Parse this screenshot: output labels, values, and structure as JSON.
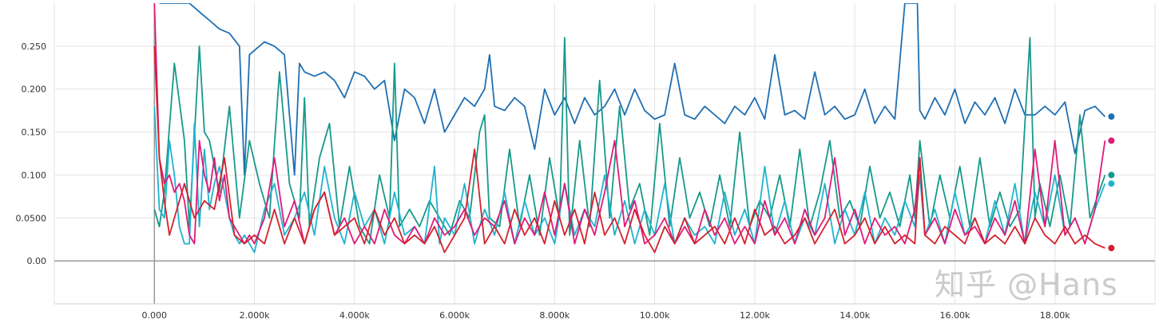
{
  "watermark": "知乎 @Hans",
  "chart_data": {
    "type": "line",
    "title": "",
    "xlabel": "",
    "ylabel": "",
    "xlim": [
      -2000,
      20000
    ],
    "ylim": [
      -0.05,
      0.3
    ],
    "grid": true,
    "x_ticks": [
      0,
      2000,
      4000,
      6000,
      8000,
      10000,
      12000,
      14000,
      16000,
      18000
    ],
    "x_tick_labels": [
      "0.000",
      "2.000k",
      "4.000k",
      "6.000k",
      "8.000k",
      "10.00k",
      "12.00k",
      "14.00k",
      "16.00k",
      "18.00k"
    ],
    "y_ticks": [
      0,
      0.05,
      0.1,
      0.15,
      0.2,
      0.25
    ],
    "y_tick_labels": [
      "0.00",
      "0.0500",
      "0.100",
      "0.150",
      "0.200",
      "0.250"
    ],
    "series": [
      {
        "color": "#1f6fb2",
        "x": [
          100,
          300,
          500,
          700,
          900,
          1100,
          1300,
          1500,
          1700,
          1800,
          1900,
          2000,
          2200,
          2400,
          2600,
          2800,
          2900,
          3000,
          3200,
          3400,
          3600,
          3800,
          4000,
          4200,
          4400,
          4600,
          4800,
          5000,
          5200,
          5400,
          5600,
          5800,
          6000,
          6200,
          6400,
          6600,
          6700,
          6800,
          7000,
          7200,
          7400,
          7600,
          7800,
          8000,
          8200,
          8400,
          8600,
          8800,
          9000,
          9200,
          9400,
          9600,
          9800,
          10000,
          10200,
          10400,
          10600,
          10800,
          11000,
          11200,
          11400,
          11600,
          11800,
          12000,
          12200,
          12400,
          12600,
          12800,
          13000,
          13200,
          13400,
          13600,
          13800,
          14000,
          14200,
          14400,
          14600,
          14800,
          15000,
          15200,
          15250,
          15300,
          15400,
          15600,
          15800,
          16000,
          16200,
          16400,
          16600,
          16800,
          17000,
          17200,
          17400,
          17600,
          17800,
          18000,
          18200,
          18400,
          18600,
          18800,
          19000
        ],
        "y": [
          0.3,
          0.3,
          0.3,
          0.3,
          0.29,
          0.28,
          0.27,
          0.265,
          0.25,
          0.1,
          0.24,
          0.245,
          0.255,
          0.25,
          0.24,
          0.1,
          0.23,
          0.22,
          0.215,
          0.22,
          0.21,
          0.19,
          0.22,
          0.215,
          0.2,
          0.21,
          0.14,
          0.2,
          0.19,
          0.16,
          0.2,
          0.15,
          0.17,
          0.19,
          0.18,
          0.2,
          0.24,
          0.18,
          0.175,
          0.19,
          0.18,
          0.13,
          0.2,
          0.17,
          0.19,
          0.16,
          0.19,
          0.17,
          0.18,
          0.2,
          0.17,
          0.2,
          0.175,
          0.165,
          0.17,
          0.23,
          0.17,
          0.165,
          0.18,
          0.17,
          0.16,
          0.18,
          0.17,
          0.19,
          0.165,
          0.24,
          0.17,
          0.175,
          0.165,
          0.22,
          0.17,
          0.18,
          0.165,
          0.17,
          0.2,
          0.16,
          0.18,
          0.165,
          0.3,
          0.3,
          0.3,
          0.175,
          0.165,
          0.19,
          0.17,
          0.2,
          0.16,
          0.185,
          0.17,
          0.19,
          0.16,
          0.2,
          0.17,
          0.17,
          0.18,
          0.17,
          0.185,
          0.125,
          0.175,
          0.18,
          0.168
        ]
      },
      {
        "color": "#16998a",
        "x": [
          0,
          100,
          200,
          400,
          600,
          700,
          900,
          1000,
          1100,
          1300,
          1500,
          1700,
          1900,
          2100,
          2300,
          2500,
          2700,
          2900,
          3000,
          3100,
          3300,
          3500,
          3700,
          3900,
          4100,
          4300,
          4500,
          4700,
          4800,
          4900,
          5100,
          5300,
          5500,
          5700,
          5900,
          6100,
          6300,
          6500,
          6600,
          6700,
          6900,
          7100,
          7300,
          7500,
          7700,
          7900,
          8100,
          8200,
          8300,
          8500,
          8700,
          8900,
          9100,
          9300,
          9500,
          9700,
          9900,
          10100,
          10300,
          10500,
          10700,
          10900,
          11100,
          11300,
          11500,
          11700,
          11900,
          12100,
          12300,
          12500,
          12700,
          12900,
          13100,
          13300,
          13500,
          13700,
          13900,
          14100,
          14300,
          14500,
          14700,
          14900,
          15100,
          15200,
          15300,
          15500,
          15700,
          15900,
          16100,
          16300,
          16500,
          16700,
          16900,
          17100,
          17300,
          17500,
          17600,
          17700,
          17900,
          18100,
          18300,
          18500,
          18700,
          19000
        ],
        "y": [
          0.06,
          0.04,
          0.08,
          0.23,
          0.14,
          0.04,
          0.25,
          0.15,
          0.14,
          0.08,
          0.18,
          0.05,
          0.14,
          0.09,
          0.05,
          0.22,
          0.09,
          0.05,
          0.19,
          0.04,
          0.12,
          0.16,
          0.04,
          0.11,
          0.04,
          0.02,
          0.1,
          0.05,
          0.23,
          0.04,
          0.06,
          0.04,
          0.07,
          0.05,
          0.03,
          0.07,
          0.05,
          0.15,
          0.17,
          0.05,
          0.04,
          0.13,
          0.04,
          0.1,
          0.03,
          0.12,
          0.05,
          0.26,
          0.03,
          0.14,
          0.04,
          0.21,
          0.05,
          0.18,
          0.06,
          0.09,
          0.03,
          0.16,
          0.04,
          0.12,
          0.05,
          0.08,
          0.04,
          0.1,
          0.04,
          0.15,
          0.04,
          0.07,
          0.05,
          0.1,
          0.04,
          0.13,
          0.04,
          0.08,
          0.14,
          0.05,
          0.07,
          0.04,
          0.11,
          0.05,
          0.08,
          0.04,
          0.1,
          0.05,
          0.14,
          0.04,
          0.1,
          0.05,
          0.11,
          0.04,
          0.12,
          0.04,
          0.08,
          0.04,
          0.06,
          0.26,
          0.05,
          0.09,
          0.04,
          0.1,
          0.04,
          0.17,
          0.05,
          0.1
        ]
      },
      {
        "color": "#1fb3d0",
        "x": [
          0,
          100,
          200,
          300,
          400,
          500,
          600,
          700,
          800,
          900,
          1000,
          1100,
          1200,
          1300,
          1400,
          1500,
          1600,
          1700,
          1800,
          1900,
          2000,
          2200,
          2400,
          2600,
          2800,
          3000,
          3200,
          3400,
          3600,
          3800,
          4000,
          4200,
          4400,
          4600,
          4800,
          5000,
          5200,
          5400,
          5600,
          5700,
          5800,
          6000,
          6200,
          6400,
          6600,
          6800,
          7000,
          7200,
          7400,
          7600,
          7800,
          8000,
          8200,
          8400,
          8600,
          8800,
          9000,
          9200,
          9400,
          9600,
          9800,
          10000,
          10200,
          10400,
          10600,
          10800,
          11000,
          11200,
          11400,
          11600,
          11800,
          12000,
          12200,
          12400,
          12600,
          12800,
          13000,
          13200,
          13400,
          13600,
          13800,
          14000,
          14200,
          14400,
          14600,
          14800,
          15000,
          15200,
          15300,
          15400,
          15600,
          15800,
          16000,
          16200,
          16400,
          16600,
          16800,
          17000,
          17200,
          17400,
          17600,
          17800,
          18000,
          18200,
          18400,
          18600,
          18800,
          19000
        ],
        "y": [
          0.18,
          0.06,
          0.05,
          0.14,
          0.1,
          0.04,
          0.02,
          0.02,
          0.16,
          0.04,
          0.13,
          0.06,
          0.09,
          0.11,
          0.08,
          0.05,
          0.03,
          0.02,
          0.03,
          0.02,
          0.01,
          0.06,
          0.09,
          0.03,
          0.05,
          0.08,
          0.03,
          0.11,
          0.05,
          0.02,
          0.08,
          0.04,
          0.06,
          0.02,
          0.08,
          0.03,
          0.04,
          0.02,
          0.11,
          0.02,
          0.05,
          0.03,
          0.09,
          0.02,
          0.06,
          0.03,
          0.08,
          0.02,
          0.07,
          0.03,
          0.05,
          0.02,
          0.09,
          0.03,
          0.06,
          0.04,
          0.1,
          0.03,
          0.07,
          0.02,
          0.06,
          0.03,
          0.09,
          0.02,
          0.05,
          0.03,
          0.04,
          0.02,
          0.08,
          0.03,
          0.06,
          0.02,
          0.11,
          0.03,
          0.07,
          0.02,
          0.05,
          0.03,
          0.09,
          0.02,
          0.06,
          0.03,
          0.08,
          0.02,
          0.05,
          0.03,
          0.07,
          0.04,
          0.1,
          0.03,
          0.06,
          0.02,
          0.08,
          0.03,
          0.05,
          0.02,
          0.07,
          0.03,
          0.09,
          0.02,
          0.08,
          0.04,
          0.1,
          0.03,
          0.05,
          0.02,
          0.06,
          0.09
        ]
      },
      {
        "color": "#e0197a",
        "x": [
          0,
          100,
          200,
          300,
          400,
          500,
          600,
          700,
          800,
          900,
          1000,
          1100,
          1200,
          1300,
          1400,
          1500,
          1600,
          1700,
          1800,
          1900,
          2000,
          2200,
          2400,
          2600,
          2800,
          3000,
          3200,
          3400,
          3600,
          3800,
          4000,
          4200,
          4400,
          4600,
          4800,
          5000,
          5200,
          5400,
          5600,
          5800,
          6000,
          6200,
          6400,
          6600,
          6800,
          7000,
          7200,
          7400,
          7600,
          7800,
          8000,
          8200,
          8400,
          8600,
          8800,
          9000,
          9200,
          9400,
          9600,
          9800,
          10000,
          10200,
          10400,
          10600,
          10800,
          11000,
          11200,
          11400,
          11600,
          11800,
          12000,
          12200,
          12400,
          12600,
          12800,
          13000,
          13200,
          13400,
          13600,
          13800,
          14000,
          14200,
          14400,
          14600,
          14800,
          15000,
          15200,
          15300,
          15400,
          15600,
          15800,
          16000,
          16200,
          16400,
          16600,
          16800,
          17000,
          17200,
          17400,
          17600,
          17800,
          18000,
          18200,
          18400,
          18600,
          18800,
          19000
        ],
        "y": [
          0.3,
          0.12,
          0.09,
          0.1,
          0.08,
          0.09,
          0.07,
          0.03,
          0.02,
          0.14,
          0.1,
          0.08,
          0.12,
          0.07,
          0.1,
          0.05,
          0.04,
          0.03,
          0.02,
          0.03,
          0.02,
          0.05,
          0.12,
          0.04,
          0.07,
          0.02,
          0.06,
          0.08,
          0.03,
          0.05,
          0.02,
          0.04,
          0.02,
          0.06,
          0.03,
          0.02,
          0.04,
          0.02,
          0.05,
          0.03,
          0.04,
          0.06,
          0.03,
          0.05,
          0.04,
          0.07,
          0.02,
          0.05,
          0.03,
          0.08,
          0.03,
          0.09,
          0.02,
          0.06,
          0.03,
          0.08,
          0.14,
          0.04,
          0.07,
          0.02,
          0.03,
          0.05,
          0.02,
          0.04,
          0.02,
          0.06,
          0.03,
          0.05,
          0.02,
          0.04,
          0.02,
          0.07,
          0.03,
          0.05,
          0.02,
          0.06,
          0.03,
          0.05,
          0.12,
          0.03,
          0.06,
          0.02,
          0.05,
          0.03,
          0.04,
          0.02,
          0.06,
          0.12,
          0.03,
          0.05,
          0.02,
          0.06,
          0.03,
          0.04,
          0.02,
          0.05,
          0.03,
          0.07,
          0.02,
          0.13,
          0.04,
          0.14,
          0.03,
          0.05,
          0.02,
          0.06,
          0.14
        ]
      },
      {
        "color": "#d2222d",
        "x": [
          0,
          100,
          200,
          300,
          400,
          600,
          800,
          1000,
          1200,
          1400,
          1600,
          1800,
          2000,
          2200,
          2400,
          2600,
          2800,
          3000,
          3200,
          3400,
          3600,
          3800,
          4000,
          4200,
          4400,
          4600,
          4800,
          5000,
          5200,
          5400,
          5600,
          5800,
          6000,
          6200,
          6400,
          6600,
          6800,
          7000,
          7200,
          7400,
          7600,
          7800,
          8000,
          8200,
          8400,
          8600,
          8800,
          9000,
          9200,
          9400,
          9600,
          9800,
          10000,
          10200,
          10400,
          10600,
          10800,
          11000,
          11200,
          11400,
          11600,
          11800,
          12000,
          12200,
          12400,
          12600,
          12800,
          13000,
          13200,
          13400,
          13600,
          13800,
          14000,
          14200,
          14400,
          14600,
          14800,
          15000,
          15200,
          15300,
          15400,
          15600,
          15800,
          16000,
          16200,
          16400,
          16600,
          16800,
          17000,
          17200,
          17400,
          17600,
          17800,
          18000,
          18200,
          18400,
          18600,
          18800,
          19000
        ],
        "y": [
          0.25,
          0.12,
          0.07,
          0.03,
          0.05,
          0.09,
          0.05,
          0.07,
          0.06,
          0.12,
          0.03,
          0.02,
          0.03,
          0.02,
          0.06,
          0.02,
          0.05,
          0.02,
          0.06,
          0.08,
          0.03,
          0.04,
          0.05,
          0.02,
          0.06,
          0.03,
          0.05,
          0.02,
          0.03,
          0.02,
          0.04,
          0.01,
          0.03,
          0.05,
          0.13,
          0.02,
          0.04,
          0.02,
          0.06,
          0.03,
          0.05,
          0.02,
          0.07,
          0.03,
          0.06,
          0.02,
          0.08,
          0.03,
          0.05,
          0.02,
          0.06,
          0.03,
          0.01,
          0.04,
          0.02,
          0.05,
          0.02,
          0.03,
          0.04,
          0.02,
          0.05,
          0.02,
          0.06,
          0.03,
          0.04,
          0.02,
          0.03,
          0.05,
          0.02,
          0.04,
          0.06,
          0.02,
          0.03,
          0.05,
          0.02,
          0.04,
          0.02,
          0.03,
          0.02,
          0.12,
          0.03,
          0.02,
          0.04,
          0.03,
          0.02,
          0.05,
          0.02,
          0.03,
          0.02,
          0.04,
          0.02,
          0.05,
          0.03,
          0.02,
          0.04,
          0.02,
          0.03,
          0.02,
          0.015
        ]
      }
    ]
  }
}
